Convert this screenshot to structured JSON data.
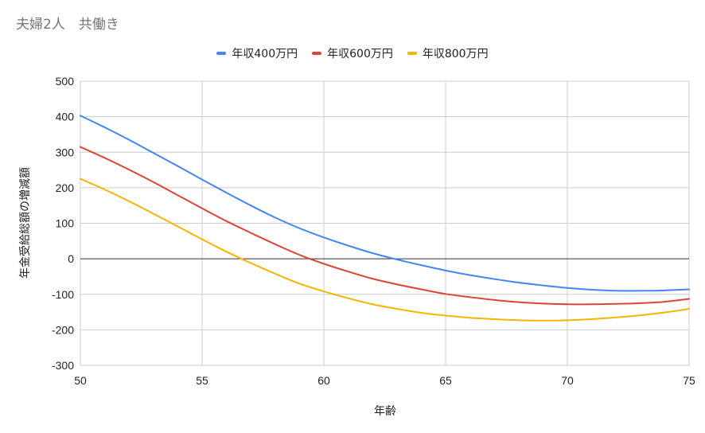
{
  "title": "夫婦2人　共働き",
  "chart_data": {
    "type": "line",
    "xlabel": "年齢",
    "ylabel": "年金受給総額の増減額",
    "xlim": [
      50,
      75
    ],
    "ylim": [
      -300,
      500
    ],
    "x_ticks": [
      50,
      55,
      60,
      65,
      70,
      75
    ],
    "y_ticks": [
      500,
      400,
      300,
      200,
      100,
      0,
      -100,
      -200,
      -300
    ],
    "grid": true,
    "legend_position": "top",
    "x": [
      50,
      51,
      52,
      53,
      54,
      55,
      56,
      57,
      58,
      59,
      60,
      61,
      62,
      63,
      64,
      65,
      66,
      67,
      68,
      69,
      70,
      71,
      72,
      73,
      74,
      75
    ],
    "series": [
      {
        "name": "年収400万円",
        "color": "#4285f4",
        "values": [
          403,
          370,
          335,
          298,
          261,
          223,
          186,
          150,
          116,
          86,
          60,
          37,
          16,
          -2,
          -18,
          -33,
          -46,
          -57,
          -67,
          -75,
          -82,
          -87,
          -90,
          -90,
          -89,
          -86
        ]
      },
      {
        "name": "年収600万円",
        "color": "#db4437",
        "values": [
          315,
          284,
          251,
          216,
          179,
          142,
          106,
          73,
          41,
          11,
          -14,
          -36,
          -56,
          -72,
          -86,
          -99,
          -108,
          -116,
          -122,
          -126,
          -128,
          -128,
          -127,
          -125,
          -121,
          -113
        ]
      },
      {
        "name": "年収800万円",
        "color": "#f4b400",
        "values": [
          225,
          195,
          162,
          127,
          91,
          55,
          20,
          -12,
          -42,
          -70,
          -92,
          -111,
          -128,
          -141,
          -152,
          -160,
          -166,
          -170,
          -173,
          -174,
          -173,
          -170,
          -165,
          -159,
          -151,
          -141
        ]
      }
    ]
  }
}
